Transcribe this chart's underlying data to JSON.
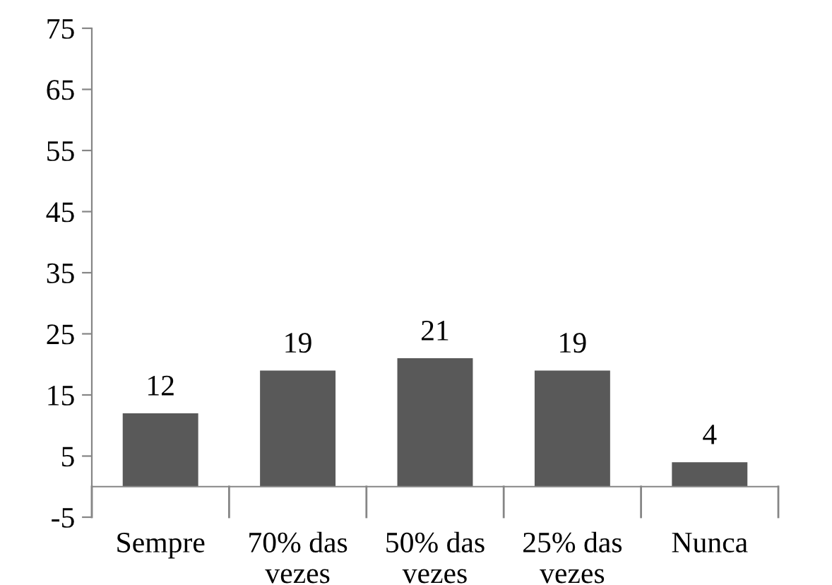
{
  "chart_data": {
    "type": "bar",
    "categories": [
      "Sempre",
      "70% das\nvezes",
      "50% das\nvezes",
      "25% das\nvezes",
      "Nunca"
    ],
    "values": [
      12,
      19,
      21,
      19,
      4
    ],
    "color": "#595959",
    "ylim": [
      -5,
      75
    ],
    "yticks": [
      -5,
      5,
      15,
      25,
      35,
      45,
      55,
      65,
      75
    ],
    "data_labels": true,
    "grid": false,
    "legend": false
  }
}
